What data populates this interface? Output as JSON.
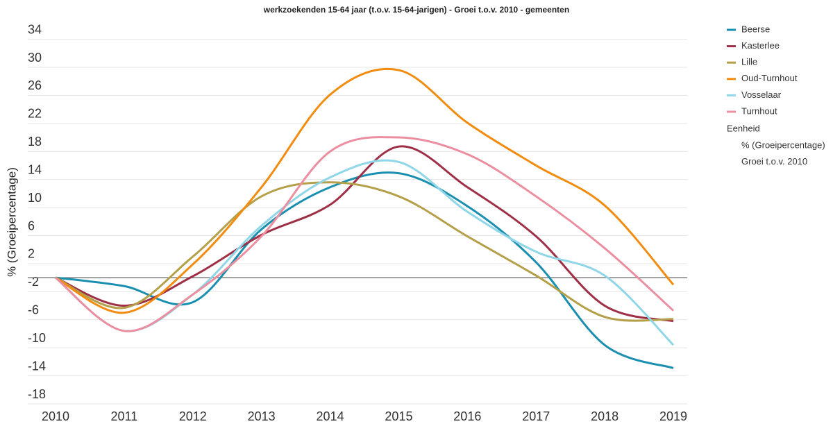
{
  "chart_data": {
    "type": "line",
    "title": "werkzoekenden 15-64 jaar (t.o.v. 15-64-jarigen) - Groei t.o.v. 2010 - gemeenten",
    "y_label": "% (Groeipercentage)",
    "categories": [
      "2010",
      "2011",
      "2012",
      "2013",
      "2014",
      "2015",
      "2016",
      "2017",
      "2018",
      "2019"
    ],
    "series": [
      {
        "name": "Beerse",
        "color": "#1a8fb0",
        "values": [
          0,
          -1.2,
          -3.5,
          6.9,
          12.9,
          14.9,
          10.2,
          2.2,
          -9.6,
          -12.9
        ]
      },
      {
        "name": "Kasterlee",
        "color": "#9e2f46",
        "values": [
          0,
          -4,
          0.2,
          6.1,
          10.4,
          18.7,
          12.9,
          5.9,
          -4,
          -6.2
        ]
      },
      {
        "name": "Lille",
        "color": "#b5a04a",
        "values": [
          0,
          -4.3,
          3,
          11.6,
          13.6,
          11.6,
          5.9,
          0.3,
          -5.6,
          -5.9
        ]
      },
      {
        "name": "Oud-Turnhout",
        "color": "#f28c0f",
        "values": [
          0,
          -5,
          1.9,
          12.9,
          26.1,
          29.6,
          22.1,
          16,
          10.3,
          -1
        ]
      },
      {
        "name": "Vosselaar",
        "color": "#8fd6e8",
        "values": [
          0,
          -7.6,
          -2.4,
          7.4,
          14.3,
          16.5,
          9.4,
          3.7,
          0.3,
          -9.6
        ]
      },
      {
        "name": "Turnhout",
        "color": "#eb8fa0",
        "values": [
          0,
          -7.6,
          -2.4,
          5.9,
          18,
          20,
          17.6,
          11.6,
          4.2,
          -4.7
        ]
      }
    ],
    "legend_unit_title": "Eenheid",
    "legend_unit_lines": [
      "% (Groeipercentage)",
      "Groei t.o.v. 2010"
    ],
    "ylim": [
      -18,
      34
    ],
    "yticks": [
      34,
      30,
      26,
      22,
      18,
      14,
      10,
      6,
      2,
      -2,
      -6,
      -10,
      -14,
      -18
    ],
    "grid": true
  }
}
